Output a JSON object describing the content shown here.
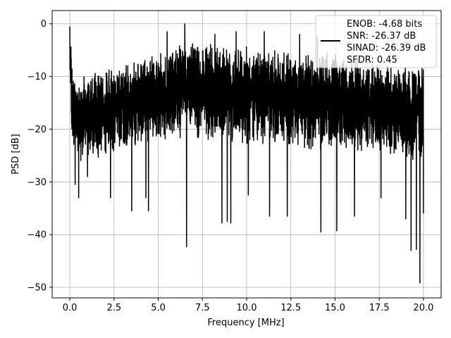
{
  "chart_data": {
    "type": "line",
    "xlabel": "Frequency [MHz]",
    "ylabel": "PSD [dB]",
    "xlim": [
      -1.0,
      21.0
    ],
    "ylim": [
      -52.0,
      2.5
    ],
    "xticks": [
      0.0,
      2.5,
      5.0,
      7.5,
      10.0,
      12.5,
      15.0,
      17.5,
      20.0
    ],
    "xtick_labels": [
      "0.0",
      "2.5",
      "5.0",
      "7.5",
      "10.0",
      "12.5",
      "15.0",
      "17.5",
      "20.0"
    ],
    "yticks": [
      0,
      -10,
      -20,
      -30,
      -40,
      -50
    ],
    "ytick_labels": [
      "0",
      "−10",
      "−20",
      "−30",
      "−40",
      "−50"
    ],
    "grid": true,
    "legend_position": "top-right",
    "line_color": "#000000",
    "grid_color": "#b0b0b0",
    "legend_entries": [
      "ENOB: -4.68 bits",
      "SNR: -26.37 dB",
      "SINAD: -26.39 dB",
      "SFDR: 0.45"
    ],
    "series": [
      {
        "x_range": [
          0.0,
          20.0
        ],
        "envelope": {
          "x": [
            0.0,
            0.05,
            0.15,
            0.3,
            0.6,
            1.0,
            1.5,
            2.0,
            2.5,
            3.0,
            3.5,
            4.0,
            4.5,
            5.0,
            5.5,
            6.0,
            6.5,
            7.0,
            7.5,
            8.0,
            8.5,
            9.0,
            9.5,
            10.0,
            10.5,
            11.0,
            11.5,
            12.0,
            12.5,
            13.0,
            13.5,
            14.0,
            14.5,
            15.0,
            15.5,
            16.0,
            16.5,
            17.0,
            17.5,
            18.0,
            18.5,
            19.0,
            19.5,
            20.0
          ],
          "upper": [
            -0.5,
            -2.5,
            -9.5,
            -11.0,
            -10.5,
            -9.5,
            -9.0,
            -8.5,
            -8.5,
            -8.0,
            -7.5,
            -7.0,
            -6.5,
            -5.5,
            -5.0,
            -4.5,
            -3.5,
            -3.0,
            -3.5,
            -4.0,
            -4.5,
            -5.0,
            -5.0,
            -3.5,
            -5.0,
            -5.0,
            -5.0,
            -5.0,
            -5.5,
            -5.0,
            -5.5,
            -5.0,
            -5.0,
            -5.5,
            -6.0,
            -6.5,
            -7.0,
            -7.0,
            -7.5,
            -8.0,
            -8.0,
            -8.0,
            -8.0,
            -8.0
          ],
          "lower": [
            -10.0,
            -18.0,
            -22.0,
            -25.0,
            -26.0,
            -26.0,
            -25.5,
            -25.0,
            -24.5,
            -24.0,
            -23.5,
            -23.0,
            -22.5,
            -22.0,
            -22.0,
            -22.0,
            -22.0,
            -22.0,
            -22.0,
            -22.5,
            -23.0,
            -23.0,
            -23.5,
            -23.0,
            -23.0,
            -23.0,
            -23.0,
            -23.0,
            -23.5,
            -23.5,
            -24.0,
            -24.0,
            -24.0,
            -24.0,
            -24.5,
            -24.5,
            -25.0,
            -25.0,
            -25.0,
            -25.5,
            -25.5,
            -26.0,
            -26.0,
            -26.0
          ]
        },
        "peaks": [
          {
            "x": 0.0,
            "y": -0.5
          },
          {
            "x": 5.5,
            "y": -1.5
          },
          {
            "x": 6.5,
            "y": 0.0
          },
          {
            "x": 8.2,
            "y": -2.0
          },
          {
            "x": 9.4,
            "y": -1.5
          },
          {
            "x": 11.0,
            "y": -1.5
          },
          {
            "x": 12.3,
            "y": -2.0
          },
          {
            "x": 13.0,
            "y": -2.0
          },
          {
            "x": 14.0,
            "y": -2.5
          }
        ],
        "dips": [
          {
            "x": 0.3,
            "y": -30.5
          },
          {
            "x": 0.5,
            "y": -33.0
          },
          {
            "x": 1.0,
            "y": -29.0
          },
          {
            "x": 2.3,
            "y": -33.0
          },
          {
            "x": 3.5,
            "y": -35.5
          },
          {
            "x": 4.3,
            "y": -33.0
          },
          {
            "x": 4.45,
            "y": -35.5
          },
          {
            "x": 6.6,
            "y": -42.3
          },
          {
            "x": 8.6,
            "y": -37.8
          },
          {
            "x": 8.9,
            "y": -37.5
          },
          {
            "x": 9.1,
            "y": -37.8
          },
          {
            "x": 10.1,
            "y": -32.5
          },
          {
            "x": 11.3,
            "y": -36.5
          },
          {
            "x": 12.3,
            "y": -36.5
          },
          {
            "x": 14.2,
            "y": -39.5
          },
          {
            "x": 15.1,
            "y": -39.3
          },
          {
            "x": 16.1,
            "y": -36.5
          },
          {
            "x": 17.6,
            "y": -33.0
          },
          {
            "x": 19.0,
            "y": -37.0
          },
          {
            "x": 19.3,
            "y": -43.0
          },
          {
            "x": 19.6,
            "y": -42.8
          },
          {
            "x": 19.8,
            "y": -49.2
          },
          {
            "x": 20.0,
            "y": -36.0
          }
        ]
      }
    ]
  }
}
